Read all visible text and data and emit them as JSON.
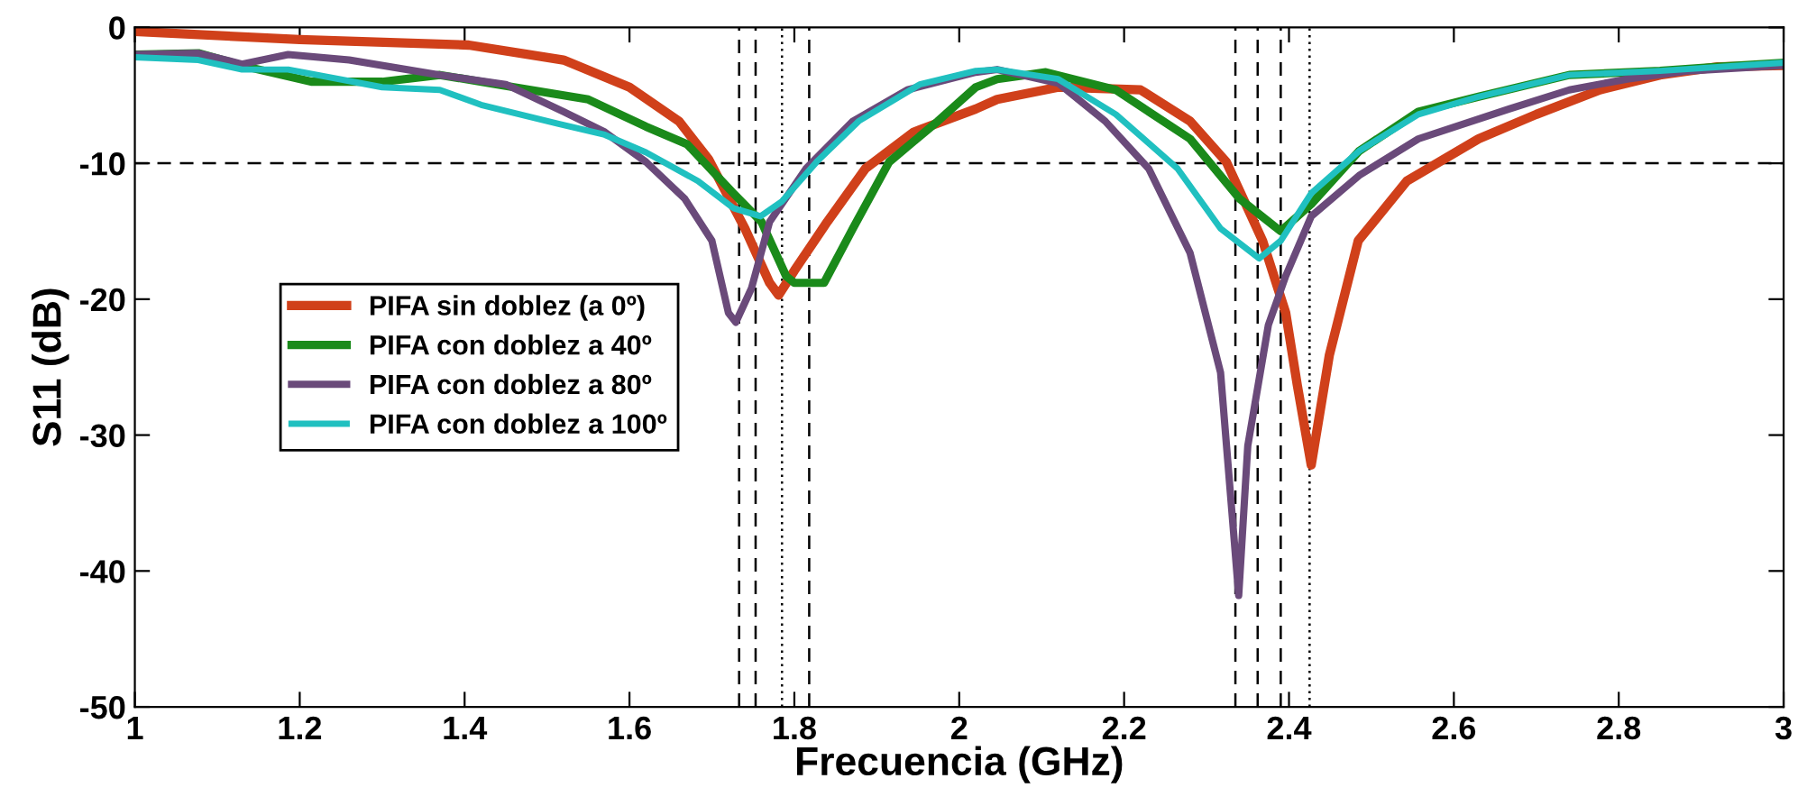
{
  "chart_data": {
    "type": "line",
    "xlabel": "Frecuencia (GHz)",
    "ylabel": "S11 (dB)",
    "xlim": [
      1,
      3
    ],
    "xticks": [
      1,
      1.2,
      1.4,
      1.6,
      1.8,
      2,
      2.2,
      2.4,
      2.6,
      2.8,
      3
    ],
    "ylim": [
      -50,
      0
    ],
    "yticks": [
      -50,
      -40,
      -30,
      -20,
      -10,
      0
    ],
    "grid": false,
    "legend": "left",
    "line_style": "solid",
    "marker": "none",
    "series": [
      {
        "name": "PIFA sin doblez (a 0º)",
        "color": "#d0401a",
        "x": [
          1.0,
          1.2,
          1.405,
          1.52,
          1.6,
          1.66,
          1.696,
          1.74,
          1.77,
          1.781,
          1.8,
          1.84,
          1.886,
          1.945,
          2.02,
          2.046,
          2.12,
          2.22,
          2.28,
          2.324,
          2.368,
          2.396,
          2.41,
          2.427,
          2.449,
          2.484,
          2.543,
          2.63,
          2.7,
          2.777,
          2.85,
          2.92,
          3.0
        ],
        "values": [
          -0.3,
          -0.9,
          -1.3,
          -2.4,
          -4.4,
          -6.9,
          -9.7,
          -14.8,
          -18.8,
          -19.7,
          -17.9,
          -14.3,
          -10.4,
          -7.7,
          -6.0,
          -5.3,
          -4.4,
          -4.6,
          -6.9,
          -9.9,
          -15.7,
          -21,
          -26.3,
          -32.2,
          -24.1,
          -15.7,
          -11.3,
          -8.2,
          -6.4,
          -4.6,
          -3.5,
          -2.9,
          -2.8
        ]
      },
      {
        "name": "PIFA con doblez a 40º",
        "color": "#1a8a1a",
        "x": [
          1.0,
          1.077,
          1.136,
          1.215,
          1.3,
          1.37,
          1.44,
          1.55,
          1.62,
          1.67,
          1.726,
          1.76,
          1.79,
          1.8,
          1.836,
          1.871,
          1.915,
          1.974,
          2.02,
          2.046,
          2.105,
          2.19,
          2.28,
          2.34,
          2.39,
          2.427,
          2.485,
          2.557,
          2.63,
          2.74,
          2.85,
          2.92,
          3.0
        ],
        "values": [
          -2.0,
          -1.9,
          -2.9,
          -4.0,
          -4.0,
          -3.5,
          -4.2,
          -5.3,
          -7.3,
          -8.6,
          -12.2,
          -14.3,
          -18.3,
          -18.8,
          -18.8,
          -14.8,
          -9.9,
          -6.9,
          -4.4,
          -3.8,
          -3.3,
          -4.6,
          -8.2,
          -12.6,
          -15.0,
          -13.0,
          -9.1,
          -6.2,
          -5.1,
          -3.5,
          -3.2,
          -2.9,
          -2.6
        ]
      },
      {
        "name": "PIFA con doblez a 80º",
        "color": "#6a4a7a",
        "x": [
          1.0,
          1.077,
          1.13,
          1.186,
          1.26,
          1.37,
          1.45,
          1.52,
          1.57,
          1.62,
          1.667,
          1.7,
          1.72,
          1.729,
          1.748,
          1.77,
          1.814,
          1.871,
          1.937,
          2.02,
          2.046,
          2.12,
          2.177,
          2.23,
          2.28,
          2.317,
          2.33,
          2.339,
          2.35,
          2.375,
          2.396,
          2.427,
          2.485,
          2.557,
          2.667,
          2.74,
          2.81,
          2.885,
          3.0
        ],
        "values": [
          -2.0,
          -1.9,
          -2.7,
          -2.0,
          -2.4,
          -3.5,
          -4.2,
          -6.2,
          -7.7,
          -9.9,
          -12.6,
          -15.7,
          -21,
          -21.7,
          -19.2,
          -14.3,
          -10.4,
          -6.9,
          -4.6,
          -3.3,
          -3.1,
          -4.1,
          -6.9,
          -10.4,
          -16.6,
          -25.4,
          -35.1,
          -41.8,
          -30.8,
          -21.9,
          -18.3,
          -13.9,
          -10.9,
          -8.2,
          -6.0,
          -4.6,
          -3.8,
          -3.2,
          -2.8
        ]
      },
      {
        "name": "PIFA con doblez a 100º",
        "color": "#20c0c0",
        "x": [
          1.0,
          1.077,
          1.13,
          1.186,
          1.3,
          1.37,
          1.42,
          1.514,
          1.57,
          1.62,
          1.683,
          1.726,
          1.759,
          1.785,
          1.827,
          1.878,
          1.952,
          2.02,
          2.046,
          2.12,
          2.19,
          2.265,
          2.317,
          2.364,
          2.39,
          2.427,
          2.485,
          2.557,
          2.63,
          2.74,
          2.85,
          3.0
        ],
        "values": [
          -2.2,
          -2.4,
          -3.1,
          -3.1,
          -4.4,
          -4.6,
          -5.7,
          -7.1,
          -7.9,
          -9.2,
          -11.3,
          -13.3,
          -13.9,
          -12.8,
          -9.9,
          -6.9,
          -4.2,
          -3.2,
          -3.1,
          -3.8,
          -6.4,
          -10.4,
          -14.8,
          -17.0,
          -15.7,
          -12.2,
          -9.1,
          -6.4,
          -5.1,
          -3.5,
          -3.2,
          -2.6
        ]
      }
    ],
    "ref_lines": [
      {
        "axis": "y",
        "value": -10,
        "color": "#000000",
        "line_style": "dashed"
      },
      {
        "axis": "x",
        "value": 1.733,
        "color": "#000000",
        "line_style": "dashed"
      },
      {
        "axis": "x",
        "value": 1.753,
        "color": "#000000",
        "line_style": "dashed"
      },
      {
        "axis": "x",
        "value": 1.785,
        "color": "#000000",
        "line_style": "dotted"
      },
      {
        "axis": "x",
        "value": 1.818,
        "color": "#000000",
        "line_style": "dashed"
      },
      {
        "axis": "x",
        "value": 2.335,
        "color": "#000000",
        "line_style": "dashed"
      },
      {
        "axis": "x",
        "value": 2.362,
        "color": "#000000",
        "line_style": "dashed"
      },
      {
        "axis": "x",
        "value": 2.39,
        "color": "#000000",
        "line_style": "dashed"
      },
      {
        "axis": "x",
        "value": 2.425,
        "color": "#000000",
        "line_style": "dotted"
      }
    ]
  }
}
